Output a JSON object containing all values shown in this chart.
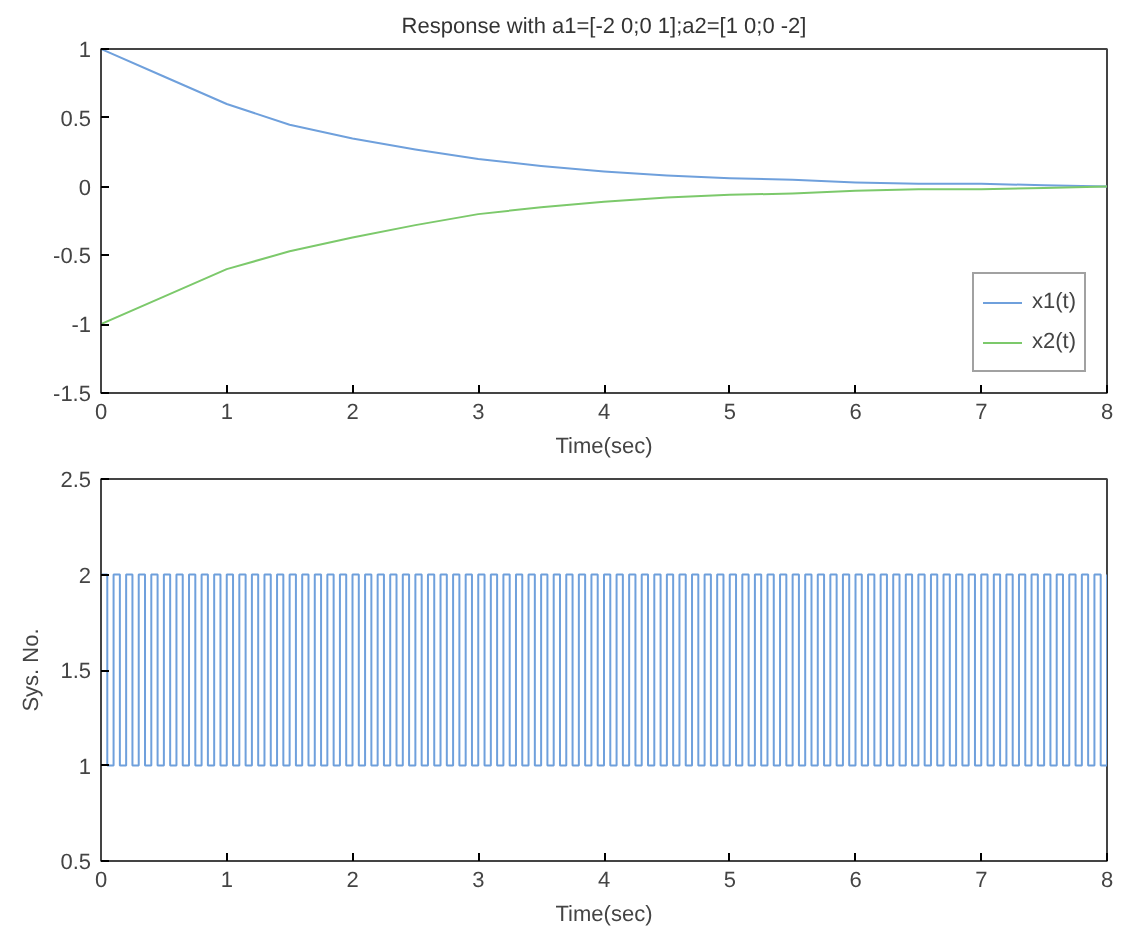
{
  "chart_data": [
    {
      "type": "line",
      "title": "Response with a1=[-2 0;0 1];a2=[1 0;0 -2]",
      "xlabel": "Time(sec)",
      "x": [
        0,
        0.5,
        1,
        1.5,
        2,
        2.5,
        3,
        3.5,
        4,
        4.5,
        5,
        5.5,
        6,
        6.5,
        7,
        7.5,
        8
      ],
      "series": [
        {
          "name": "x1(t)",
          "color": "#6fa0dc",
          "values": [
            1,
            0.8,
            0.6,
            0.45,
            0.35,
            0.27,
            0.2,
            0.15,
            0.11,
            0.08,
            0.06,
            0.05,
            0.03,
            0.02,
            0.02,
            0.01,
            0
          ]
        },
        {
          "name": "x2(t)",
          "color": "#7cc96b",
          "values": [
            -1,
            -0.8,
            -0.6,
            -0.47,
            -0.37,
            -0.28,
            -0.2,
            -0.15,
            -0.11,
            -0.08,
            -0.06,
            -0.05,
            -0.03,
            -0.02,
            -0.02,
            -0.01,
            0
          ]
        }
      ],
      "xlim": [
        0,
        8
      ],
      "xticks": [
        0,
        1,
        2,
        3,
        4,
        5,
        6,
        7,
        8
      ],
      "ylim": [
        -1.5,
        1
      ],
      "yticks": [
        -1.5,
        -1,
        -0.5,
        0,
        0.5,
        1
      ],
      "grid": false,
      "legend": "bottom right"
    },
    {
      "type": "step",
      "xlabel": "Time(sec)",
      "ylabel": "Sys. No.",
      "x": [
        0,
        0.05,
        0.1,
        0.15,
        0.2,
        0.25,
        0.3,
        0.35,
        0.4,
        0.45,
        0.5,
        0.55,
        0.6,
        0.65,
        0.7,
        0.75,
        0.8,
        0.85,
        0.9,
        0.95,
        1,
        1.05,
        1.1,
        1.15,
        1.2,
        1.25,
        1.3,
        1.35,
        1.4,
        1.45,
        1.5,
        1.55,
        1.6,
        1.65,
        1.7,
        1.75,
        1.8,
        1.85,
        1.9,
        1.95,
        2,
        2.05,
        2.1,
        2.15,
        2.2,
        2.25,
        2.3,
        2.35,
        2.4,
        2.45,
        2.5,
        2.55,
        2.6,
        2.65,
        2.7,
        2.75,
        2.8,
        2.85,
        2.9,
        2.95,
        3,
        3.05,
        3.1,
        3.15,
        3.2,
        3.25,
        3.3,
        3.35,
        3.4,
        3.45,
        3.5,
        3.55,
        3.6,
        3.65,
        3.7,
        3.75,
        3.8,
        3.85,
        3.9,
        3.95,
        4,
        4.05,
        4.1,
        4.15,
        4.2,
        4.25,
        4.3,
        4.35,
        4.4,
        4.45,
        4.5,
        4.55,
        4.6,
        4.65,
        4.7,
        4.75,
        4.8,
        4.85,
        4.9,
        4.95,
        5,
        5.05,
        5.1,
        5.15,
        5.2,
        5.25,
        5.3,
        5.35,
        5.4,
        5.45,
        5.5,
        5.55,
        5.6,
        5.65,
        5.7,
        5.75,
        5.8,
        5.85,
        5.9,
        5.95,
        6,
        6.05,
        6.1,
        6.15,
        6.2,
        6.25,
        6.3,
        6.35,
        6.4,
        6.45,
        6.5,
        6.55,
        6.6,
        6.65,
        6.7,
        6.75,
        6.8,
        6.85,
        6.9,
        6.95,
        7,
        7.05,
        7.1,
        7.15,
        7.2,
        7.25,
        7.3,
        7.35,
        7.4,
        7.45,
        7.5,
        7.55,
        7.6,
        7.65,
        7.7,
        7.75,
        7.8,
        7.85,
        7.9,
        7.95,
        8
      ],
      "series": [
        {
          "color": "#6fa0dc",
          "values": [
            2,
            1,
            2,
            1,
            2,
            1,
            2,
            1,
            2,
            1,
            2,
            1,
            2,
            1,
            2,
            1,
            2,
            1,
            2,
            1,
            2,
            1,
            2,
            1,
            2,
            1,
            2,
            1,
            2,
            1,
            2,
            1,
            2,
            1,
            2,
            1,
            2,
            1,
            2,
            1,
            2,
            1,
            2,
            1,
            2,
            1,
            2,
            1,
            2,
            1,
            2,
            1,
            2,
            1,
            2,
            1,
            2,
            1,
            2,
            1,
            2,
            1,
            2,
            1,
            2,
            1,
            2,
            1,
            2,
            1,
            2,
            1,
            2,
            1,
            2,
            1,
            2,
            1,
            2,
            1,
            2,
            1,
            2,
            1,
            2,
            1,
            2,
            1,
            2,
            1,
            2,
            1,
            2,
            1,
            2,
            1,
            2,
            1,
            2,
            1,
            2,
            1,
            2,
            1,
            2,
            1,
            2,
            1,
            2,
            1,
            2,
            1,
            2,
            1,
            2,
            1,
            2,
            1,
            2,
            1,
            2,
            1,
            2,
            1,
            2,
            1,
            2,
            1,
            2,
            1,
            2,
            1,
            2,
            1,
            2,
            1,
            2,
            1,
            2,
            1,
            2,
            1,
            2,
            1,
            2,
            1,
            2,
            1,
            2,
            1,
            2,
            1,
            2,
            1,
            2,
            1,
            2,
            1,
            2,
            1,
            2
          ]
        }
      ],
      "xlim": [
        0,
        8
      ],
      "xticks": [
        0,
        1,
        2,
        3,
        4,
        5,
        6,
        7,
        8
      ],
      "ylim": [
        0.5,
        2.5
      ],
      "yticks": [
        0.5,
        1,
        1.5,
        2,
        2.5
      ],
      "grid": false
    }
  ]
}
